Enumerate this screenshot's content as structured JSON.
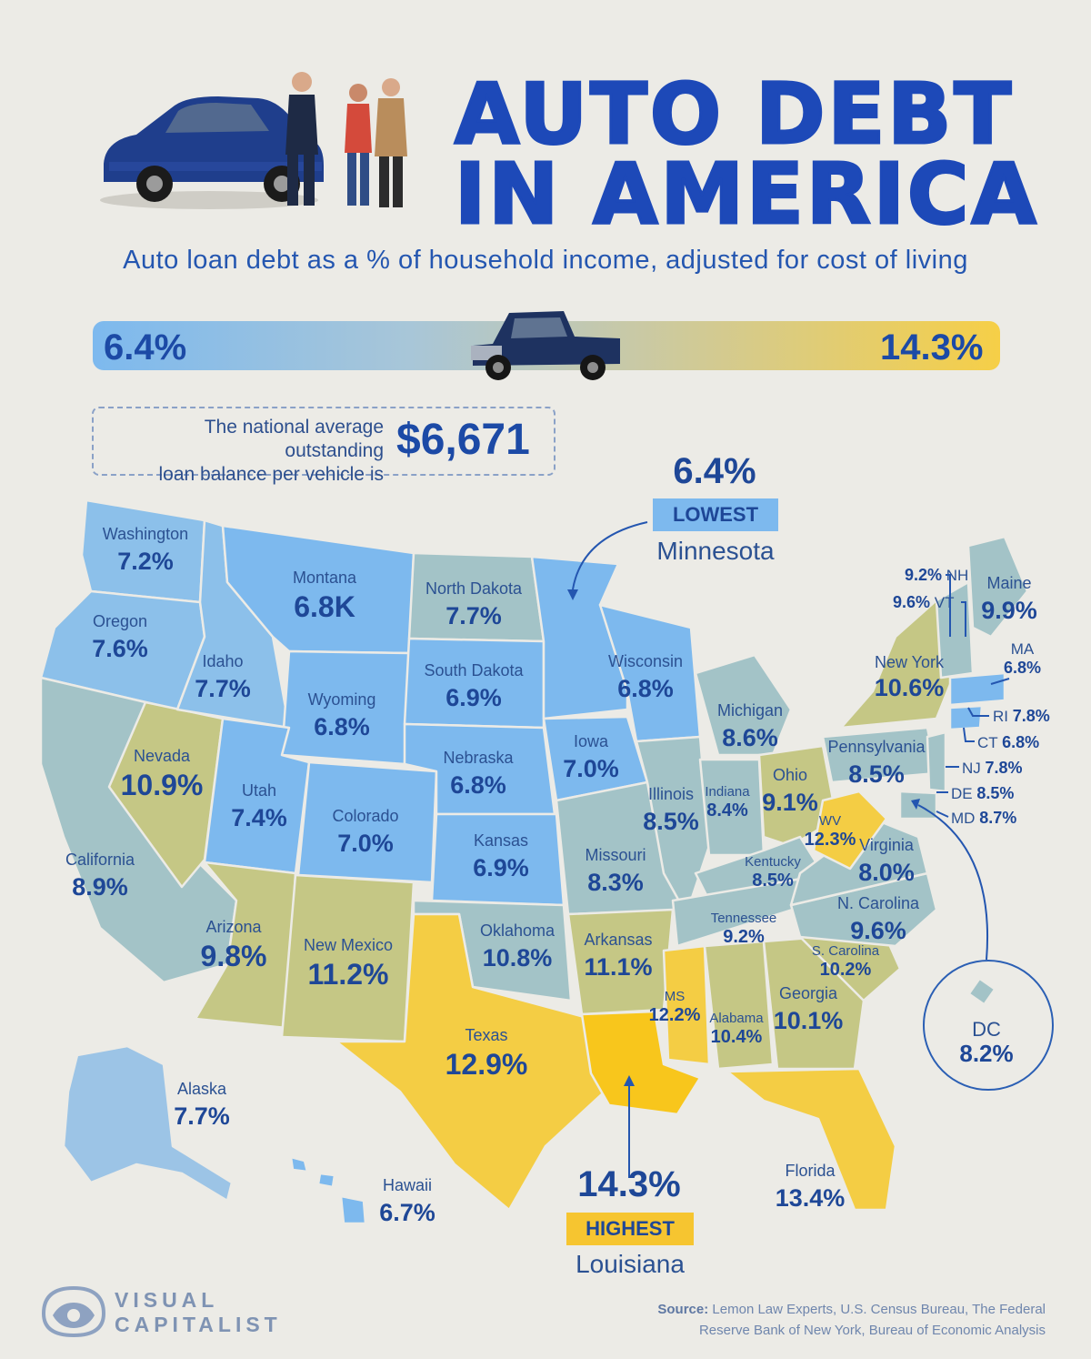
{
  "title_line1": "AUTO DEBT",
  "title_line2": "IN AMERICA",
  "subtitle": "Auto loan debt as a % of household income, adjusted for cost of living",
  "scale": {
    "min_label": "6.4%",
    "max_label": "14.3%"
  },
  "national_average": {
    "text_line1": "The national average outstanding",
    "text_line2": "loan balance per vehicle is",
    "value": "$6,671"
  },
  "lowest": {
    "value": "6.4%",
    "badge": "LOWEST",
    "state": "Minnesota"
  },
  "highest": {
    "value": "14.3%",
    "badge": "HIGHEST",
    "state": "Louisiana"
  },
  "colors": {
    "low": "#7db9ee",
    "mid": "#a8c6d8",
    "upper_mid": "#c9c9a5",
    "high": "#f6cf47",
    "ink": "#1e4797"
  },
  "states": [
    {
      "name": "Washington",
      "value": "7.2%"
    },
    {
      "name": "Oregon",
      "value": "7.6%"
    },
    {
      "name": "California",
      "value": "8.9%"
    },
    {
      "name": "Nevada",
      "value": "10.9%"
    },
    {
      "name": "Idaho",
      "value": "7.7%"
    },
    {
      "name": "Montana",
      "value": "6.8K"
    },
    {
      "name": "Wyoming",
      "value": "6.8%"
    },
    {
      "name": "Utah",
      "value": "7.4%"
    },
    {
      "name": "Arizona",
      "value": "9.8%"
    },
    {
      "name": "Colorado",
      "value": "7.0%"
    },
    {
      "name": "New Mexico",
      "value": "11.2%"
    },
    {
      "name": "North Dakota",
      "value": "7.7%"
    },
    {
      "name": "South Dakota",
      "value": "6.9%"
    },
    {
      "name": "Nebraska",
      "value": "6.8%"
    },
    {
      "name": "Kansas",
      "value": "6.9%"
    },
    {
      "name": "Oklahoma",
      "value": "10.8%"
    },
    {
      "name": "Texas",
      "value": "12.9%"
    },
    {
      "name": "Iowa",
      "value": "7.0%"
    },
    {
      "name": "Missouri",
      "value": "8.3%"
    },
    {
      "name": "Arkansas",
      "value": "11.1%"
    },
    {
      "name": "Wisconsin",
      "value": "6.8%"
    },
    {
      "name": "Illinois",
      "value": "8.5%"
    },
    {
      "name": "Michigan",
      "value": "8.6%"
    },
    {
      "name": "Indiana",
      "value": "8.4%"
    },
    {
      "name": "Ohio",
      "value": "9.1%"
    },
    {
      "name": "Kentucky",
      "value": "8.5%"
    },
    {
      "name": "Tennessee",
      "value": "9.2%"
    },
    {
      "name": "MS",
      "value": "12.2%"
    },
    {
      "name": "Alabama",
      "value": "10.4%"
    },
    {
      "name": "Georgia",
      "value": "10.1%"
    },
    {
      "name": "Florida",
      "value": "13.4%"
    },
    {
      "name": "S. Carolina",
      "value": "10.2%"
    },
    {
      "name": "N. Carolina",
      "value": "9.6%"
    },
    {
      "name": "Virginia",
      "value": "8.0%"
    },
    {
      "name": "WV",
      "value": "12.3%"
    },
    {
      "name": "Pennsylvania",
      "value": "8.5%"
    },
    {
      "name": "New York",
      "value": "10.6%"
    },
    {
      "name": "Maine",
      "value": "9.9%"
    },
    {
      "name": "Alaska",
      "value": "7.7%"
    },
    {
      "name": "Hawaii",
      "value": "6.7%"
    }
  ],
  "northeast": [
    {
      "abbr": "NH",
      "value": "9.2%"
    },
    {
      "abbr": "VT",
      "value": "9.6%"
    },
    {
      "abbr": "MA",
      "value": "6.8%"
    },
    {
      "abbr": "RI",
      "value": "7.8%"
    },
    {
      "abbr": "CT",
      "value": "6.8%"
    },
    {
      "abbr": "NJ",
      "value": "7.8%"
    },
    {
      "abbr": "DE",
      "value": "8.5%"
    },
    {
      "abbr": "MD",
      "value": "8.7%"
    }
  ],
  "dc": {
    "abbr": "DC",
    "value": "8.2%"
  },
  "source_label": "Source:",
  "source_line1": "Lemon Law Experts, U.S. Census Bureau, The Federal",
  "source_line2": "Reserve Bank of New York, Bureau of Economic Analysis",
  "brand_line1": "VISUAL",
  "brand_line2": "CAPITALIST"
}
